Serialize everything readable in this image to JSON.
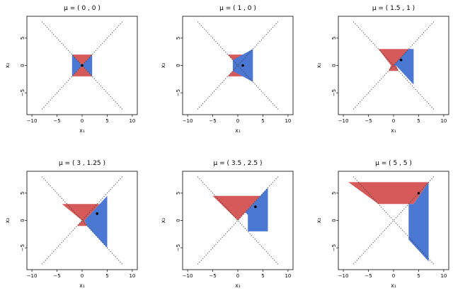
{
  "chart_data": [
    {
      "type": "area",
      "title": "μ = ( 0 , 0 )",
      "xlabel": "x₁",
      "ylabel": "x₂",
      "xlim": [
        -11,
        11
      ],
      "ylim": [
        -9,
        9
      ],
      "xticks": [
        -10,
        -5,
        0,
        5,
        10
      ],
      "yticks": [
        -5,
        0,
        5
      ],
      "mu": [
        0,
        0
      ],
      "regions": [
        {
          "color": "#d65a5a",
          "polygon": [
            [
              -2,
              2
            ],
            [
              2,
              2
            ],
            [
              -2,
              -2
            ],
            [
              2,
              -2
            ]
          ]
        },
        {
          "color": "#4a78d2",
          "polygon": [
            [
              -2,
              2
            ],
            [
              -2,
              -2
            ],
            [
              2,
              2
            ],
            [
              2,
              -2
            ]
          ]
        }
      ]
    },
    {
      "type": "area",
      "title": "μ = ( 1 , 0 )",
      "xlabel": "x₁",
      "ylabel": "x₂",
      "xlim": [
        -11,
        11
      ],
      "ylim": [
        -9,
        9
      ],
      "xticks": [
        -10,
        -5,
        0,
        5,
        10
      ],
      "yticks": [
        -5,
        0,
        5
      ],
      "mu": [
        1,
        0
      ],
      "regions": [
        {
          "color": "#d65a5a",
          "polygon": [
            [
              -2,
              2
            ],
            [
              2,
              2
            ],
            [
              -2,
              -2
            ],
            [
              2,
              -2
            ]
          ]
        },
        {
          "color": "#4a78d2",
          "polygon": [
            [
              -1,
              1
            ],
            [
              3,
              3
            ],
            [
              3,
              -3
            ],
            [
              -1,
              -1
            ]
          ]
        }
      ]
    },
    {
      "type": "area",
      "title": "μ = ( 1.5 , 1 )",
      "xlabel": "x₁",
      "ylabel": "x₂",
      "xlim": [
        -11,
        11
      ],
      "ylim": [
        -9,
        9
      ],
      "xticks": [
        -10,
        -5,
        0,
        5,
        10
      ],
      "yticks": [
        -5,
        0,
        5
      ],
      "mu": [
        1.5,
        1
      ],
      "regions": [
        {
          "color": "#d65a5a",
          "polygon": [
            [
              -3,
              3
            ],
            [
              3.5,
              3
            ],
            [
              0.5,
              0
            ],
            [
              1,
              -1
            ],
            [
              -1,
              -1
            ],
            [
              -0.5,
              0
            ]
          ]
        },
        {
          "color": "#4a78d2",
          "polygon": [
            [
              0,
              0
            ],
            [
              3,
              3
            ],
            [
              4,
              3
            ],
            [
              4,
              -3.5
            ],
            [
              0.5,
              0
            ]
          ]
        }
      ]
    },
    {
      "type": "area",
      "title": "μ = ( 3 , 1.25 )",
      "xlabel": "x₁",
      "ylabel": "x₂",
      "xlim": [
        -11,
        11
      ],
      "ylim": [
        -9,
        9
      ],
      "xticks": [
        -10,
        -5,
        0,
        5,
        10
      ],
      "yticks": [
        -5,
        0,
        5
      ],
      "mu": [
        3,
        1.25
      ],
      "regions": [
        {
          "color": "#d65a5a",
          "polygon": [
            [
              -4,
              3
            ],
            [
              3.5,
              3
            ],
            [
              0.5,
              0
            ],
            [
              1,
              -1
            ],
            [
              -1,
              -1
            ],
            [
              0,
              0
            ]
          ]
        },
        {
          "color": "#4a78d2",
          "polygon": [
            [
              0.5,
              0
            ],
            [
              3.5,
              3
            ],
            [
              5,
              4.5
            ],
            [
              5,
              -5
            ],
            [
              1,
              -1
            ]
          ]
        }
      ]
    },
    {
      "type": "area",
      "title": "μ = ( 3.5 , 2.5 )",
      "xlabel": "x₁",
      "ylabel": "x₂",
      "xlim": [
        -11,
        11
      ],
      "ylim": [
        -9,
        9
      ],
      "xticks": [
        -10,
        -5,
        0,
        5,
        10
      ],
      "yticks": [
        -5,
        0,
        5
      ],
      "mu": [
        3.5,
        2.5
      ],
      "regions": [
        {
          "color": "#d65a5a",
          "polygon": [
            [
              -5,
              4.5
            ],
            [
              4.5,
              4.5
            ],
            [
              1.5,
              1.5
            ],
            [
              0,
              0
            ]
          ]
        },
        {
          "color": "#4a78d2",
          "polygon": [
            [
              1.5,
              1.5
            ],
            [
              4.5,
              4.5
            ],
            [
              6,
              6
            ],
            [
              6,
              -2
            ],
            [
              2,
              -2
            ],
            [
              2,
              1
            ]
          ]
        }
      ]
    },
    {
      "type": "area",
      "title": "μ = ( 5 , 5 )",
      "xlabel": "x₁",
      "ylabel": "x₂",
      "xlim": [
        -11,
        11
      ],
      "ylim": [
        -9,
        9
      ],
      "xticks": [
        -10,
        -5,
        0,
        5,
        10
      ],
      "yticks": [
        -5,
        0,
        5
      ],
      "mu": [
        5,
        5
      ],
      "regions": [
        {
          "color": "#d65a5a",
          "polygon": [
            [
              -9,
              7
            ],
            [
              7,
              7
            ],
            [
              4,
              3
            ],
            [
              -3,
              3
            ]
          ]
        },
        {
          "color": "#4a78d2",
          "polygon": [
            [
              3,
              3
            ],
            [
              4,
              3
            ],
            [
              7,
              7
            ],
            [
              7,
              -7.5
            ],
            [
              3,
              -3.5
            ]
          ]
        }
      ]
    }
  ]
}
